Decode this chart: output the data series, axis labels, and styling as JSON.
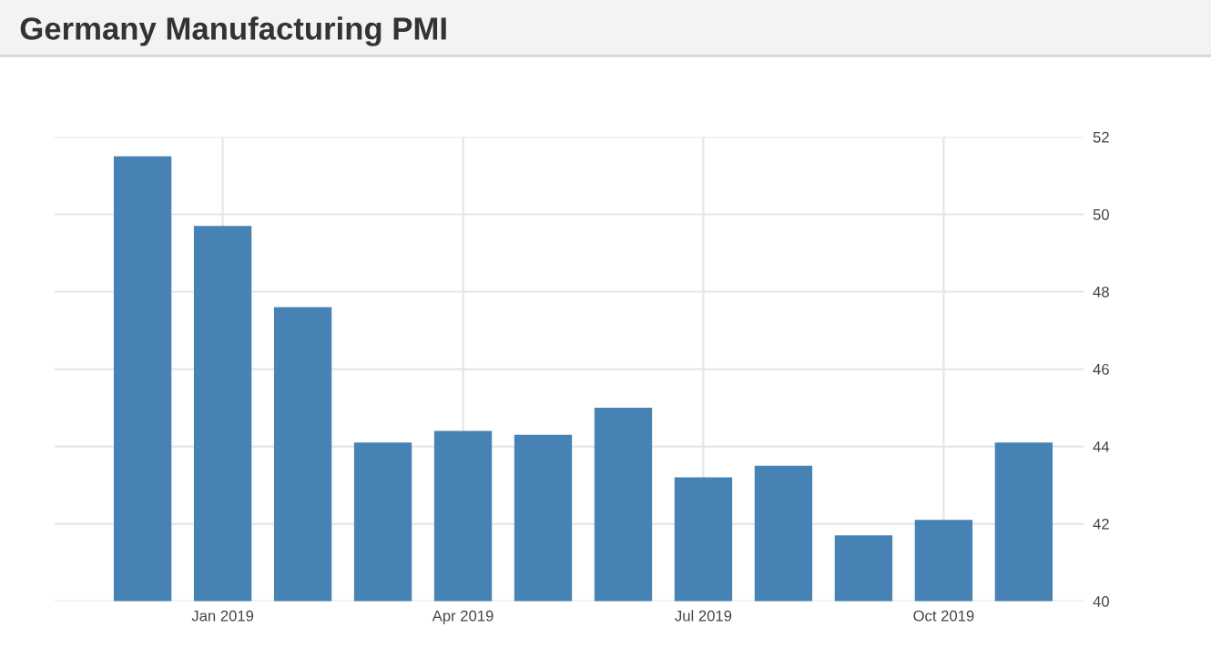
{
  "chart_data": {
    "type": "bar",
    "title": "Germany Manufacturing PMI",
    "categories": [
      null,
      "Jan 2019",
      null,
      null,
      "Apr 2019",
      null,
      null,
      "Jul 2019",
      null,
      null,
      "Oct 2019",
      null
    ],
    "values": [
      51.5,
      49.7,
      47.6,
      44.1,
      44.4,
      44.3,
      45.0,
      43.2,
      43.5,
      41.7,
      42.1,
      44.1
    ],
    "color": "#4682b4",
    "ylim": [
      40,
      52
    ],
    "yticks": [
      40,
      42,
      44,
      46,
      48,
      50,
      52
    ],
    "grid": true
  }
}
